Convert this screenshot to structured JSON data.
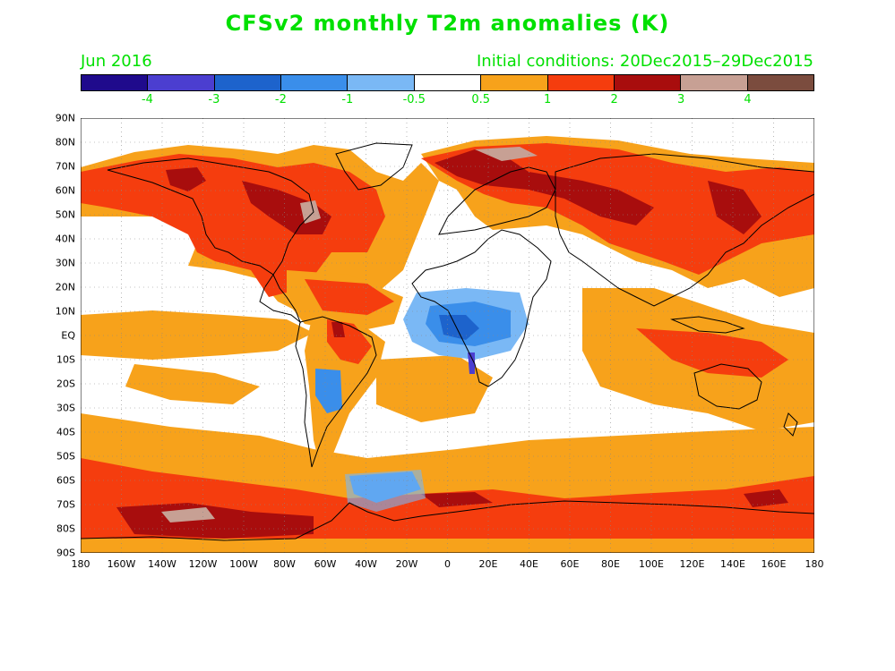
{
  "title": "CFSv2 monthly T2m anomalies (K)",
  "valid_month": "Jun 2016",
  "initial_conditions": "Initial conditions: 20Dec2015–29Dec2015",
  "colorbar": {
    "colors": [
      "#1f0a8c",
      "#4b3ed0",
      "#1d63cc",
      "#3a8eea",
      "#7ab8f5",
      "#ffffff",
      "#f7a21b",
      "#f53d0e",
      "#a80d0d",
      "#c7a094",
      "#7b4c3e"
    ],
    "labels": [
      "-4",
      "-3",
      "-2",
      "-1",
      "-0.5",
      "0.5",
      "1",
      "2",
      "3",
      "4"
    ]
  },
  "y_axis_labels": [
    "90N",
    "80N",
    "70N",
    "60N",
    "50N",
    "40N",
    "30N",
    "20N",
    "10N",
    "EQ",
    "10S",
    "20S",
    "30S",
    "40S",
    "50S",
    "60S",
    "70S",
    "80S",
    "90S"
  ],
  "x_axis_labels": [
    "180",
    "160W",
    "140W",
    "120W",
    "100W",
    "80W",
    "60W",
    "40W",
    "20W",
    "0",
    "20E",
    "40E",
    "60E",
    "80E",
    "100E",
    "120E",
    "140E",
    "160E",
    "180"
  ]
}
